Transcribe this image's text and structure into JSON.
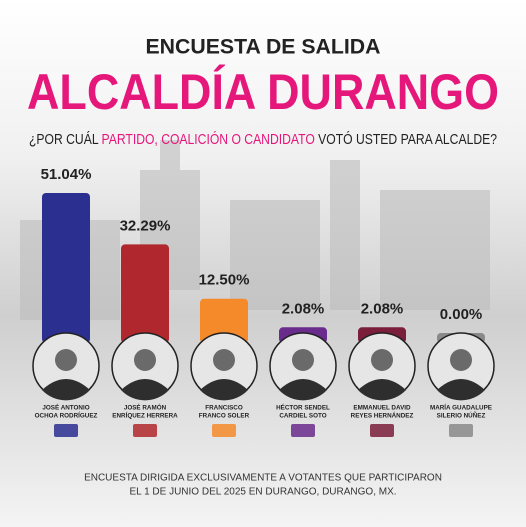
{
  "chart_data": {
    "type": "bar",
    "title": "ENCUESTA DE SALIDA",
    "subtitle": "ALCALDÍA DURANGO",
    "question": [
      "¿POR CUÁL",
      "PARTIDO, COALICIÓN O CANDIDATO",
      "VOTÓ USTED PARA ALCALDE?"
    ],
    "categories": [
      [
        "JOSÉ ANTONIO",
        "OCHOA RODRÍGUEZ"
      ],
      [
        "JOSÉ RAMÓN",
        "ENRÍQUEZ HERRERA"
      ],
      [
        "FRANCISCO",
        "FRANCO SOLER"
      ],
      [
        "HÉCTOR SENDEL",
        "CARDIEL SOTO"
      ],
      [
        "EMMANUEL DAVID",
        "REYES HERNÁNDEZ"
      ],
      [
        "MARÍA GUADALUPE",
        "SILERIO NÚÑEZ"
      ]
    ],
    "values": [
      51.04,
      32.29,
      12.5,
      2.08,
      2.08,
      0.0
    ],
    "value_labels": [
      "51.04%",
      "32.29%",
      "12.50%",
      "2.08%",
      "2.08%",
      "0.00%"
    ],
    "colors": [
      "#2b2f8f",
      "#b0282d",
      "#f58a2a",
      "#6a2c8c",
      "#7a1e3c",
      "#8a8a8a"
    ],
    "footnote": [
      "ENCUESTA DIRIGIDA EXCLUSIVAMENTE A VOTANTES QUE PARTICIPARON",
      "EL 1 DE JUNIO DEL 2025 EN DURANGO, DURANGO, MX."
    ]
  }
}
